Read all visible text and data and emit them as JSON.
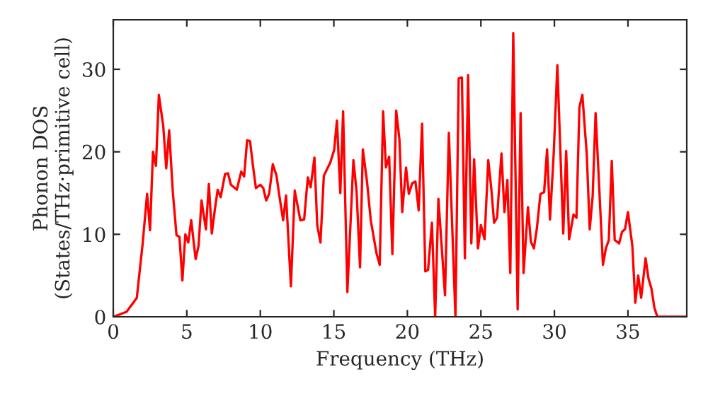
{
  "chart_data": {
    "type": "line",
    "xlabel": "Frequency (THz)",
    "ylabel": "Phonon DOS\n(States/THz·primitive cell)",
    "x": [
      0,
      0.9,
      1.6,
      2.0,
      2.3,
      2.5,
      2.7,
      2.9,
      3.1,
      3.4,
      3.6,
      3.8,
      4.05,
      4.3,
      4.5,
      4.7,
      4.9,
      5.1,
      5.3,
      5.6,
      5.8,
      6.0,
      6.3,
      6.5,
      6.7,
      6.9,
      7.1,
      7.3,
      7.6,
      7.8,
      8.0,
      8.4,
      8.7,
      8.9,
      9.1,
      9.3,
      9.5,
      9.7,
      10.0,
      10.2,
      10.4,
      10.6,
      10.85,
      11.1,
      11.3,
      11.55,
      11.75,
      12.08,
      12.34,
      12.72,
      12.98,
      13.23,
      13.42,
      13.68,
      13.87,
      14.09,
      14.32,
      14.76,
      15.02,
      15.21,
      15.44,
      15.63,
      15.92,
      16.33,
      16.55,
      16.78,
      16.97,
      17.26,
      17.51,
      17.9,
      18.12,
      18.35,
      18.54,
      18.76,
      18.98,
      19.24,
      19.46,
      19.65,
      19.91,
      20.1,
      20.33,
      20.55,
      20.77,
      21.0,
      21.22,
      21.41,
      21.67,
      21.89,
      22.11,
      22.56,
      22.82,
      23.27,
      23.49,
      23.71,
      23.91,
      24.13,
      24.35,
      24.54,
      24.8,
      25.0,
      25.25,
      25.5,
      25.7,
      25.9,
      26.1,
      26.4,
      26.6,
      26.8,
      27.0,
      27.2,
      27.5,
      27.7,
      27.9,
      28.2,
      28.4,
      28.6,
      28.8,
      29.05,
      29.3,
      29.5,
      29.7,
      29.95,
      30.2,
      30.4,
      30.6,
      30.8,
      31.0,
      31.3,
      31.5,
      31.7,
      31.9,
      32.2,
      32.4,
      32.6,
      32.8,
      33.0,
      33.3,
      33.5,
      33.7,
      33.9,
      34.1,
      34.4,
      34.6,
      34.8,
      35.0,
      35.3,
      35.5,
      35.7,
      35.9,
      36.2,
      36.4,
      36.6,
      36.8,
      37.0,
      39.0
    ],
    "series": [
      {
        "color": "#ff0000",
        "values": [
          0,
          0.6,
          2.3,
          8.9,
          14.9,
          10.5,
          20,
          18.3,
          26.9,
          23.1,
          18,
          22.6,
          15.1,
          9.9,
          9.7,
          4.4,
          10,
          9,
          11.7,
          7,
          8.6,
          14.1,
          10.6,
          16.1,
          10.1,
          12.9,
          15.4,
          14.5,
          17.3,
          17.4,
          16,
          15.4,
          17.6,
          17,
          21.4,
          21.3,
          18.3,
          15.6,
          16,
          15.6,
          14.1,
          14.9,
          18.5,
          17.1,
          14.6,
          11.7,
          14.7,
          3.7,
          15.3,
          11.7,
          11.8,
          16.9,
          15.7,
          19.3,
          11.1,
          9,
          17.1,
          18.7,
          20.2,
          23.8,
          15,
          24.9,
          3,
          19,
          15.1,
          6,
          20.3,
          16.3,
          11.7,
          7.7,
          6.3,
          24.9,
          18.1,
          19.4,
          7.6,
          25,
          21.5,
          12.7,
          18.1,
          14.9,
          16.2,
          16.4,
          12.9,
          23.4,
          5.5,
          5.7,
          11.4,
          0,
          14.3,
          2.6,
          22.3,
          0,
          28.9,
          29,
          7.1,
          29.3,
          8.9,
          19.1,
          8.3,
          11.1,
          9.4,
          19,
          15.7,
          11.4,
          12,
          19.8,
          12.7,
          16.6,
          5.3,
          34.4,
          0.9,
          24.7,
          5.3,
          13.3,
          9.1,
          8.3,
          10.6,
          14.9,
          15.1,
          20.3,
          11.8,
          19.7,
          30.5,
          20.3,
          10.1,
          20.1,
          9.4,
          12.4,
          12,
          25.4,
          26.9,
          19.7,
          10.6,
          14.6,
          24.7,
          17.4,
          6.3,
          8.3,
          9.3,
          18.9,
          9.3,
          8.9,
          10.3,
          10.6,
          12.7,
          8.6,
          1.7,
          5,
          2.3,
          7.1,
          4.6,
          3.4,
          1.1,
          0,
          0
        ]
      }
    ],
    "xlim": [
      0,
      39
    ],
    "ylim": [
      0,
      36
    ],
    "xticks": [
      0,
      5,
      10,
      15,
      20,
      25,
      30,
      35
    ],
    "yticks": [
      0,
      10,
      20,
      30
    ],
    "grid": false,
    "legend": false,
    "marker": "none",
    "line_style": "solid"
  }
}
